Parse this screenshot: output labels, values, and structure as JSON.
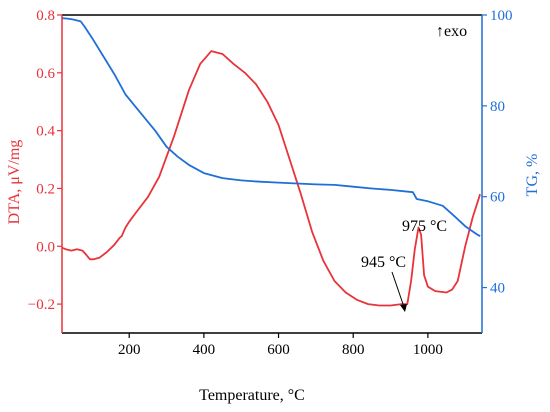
{
  "chart_data": {
    "type": "line",
    "xlabel": "Temperature, °C",
    "ylabel_left": "DTA, μV/mg",
    "ylabel_right": "TG, %",
    "xlim": [
      20,
      1145
    ],
    "ylim_left": [
      -0.3,
      0.8
    ],
    "ylim_right": [
      30,
      100
    ],
    "x_ticks": [
      200,
      400,
      600,
      800,
      1000
    ],
    "x_tick_labels": [
      "200",
      "400",
      "600",
      "800",
      "1000"
    ],
    "y_left_ticks": [
      -0.2,
      0.0,
      0.2,
      0.4,
      0.6,
      0.8
    ],
    "y_left_tick_labels": [
      "−0.2",
      "0.0",
      "0.2",
      "0.4",
      "0.6",
      "0.8"
    ],
    "y_right_ticks": [
      40,
      60,
      80,
      100
    ],
    "y_right_tick_labels": [
      "40",
      "60",
      "80",
      "100"
    ],
    "colors": {
      "dta": "#e8333a",
      "tg": "#1f6fd8",
      "axis": "#000000"
    },
    "series": [
      {
        "axis": "left",
        "x": [
          20,
          30,
          45,
          60,
          75,
          85,
          95,
          105,
          120,
          140,
          160,
          175,
          180,
          185,
          190,
          200,
          220,
          250,
          280,
          320,
          360,
          390,
          420,
          450,
          480,
          510,
          540,
          570,
          600,
          630,
          660,
          690,
          720,
          750,
          780,
          810,
          840,
          870,
          900,
          930,
          945,
          955,
          965,
          975,
          982,
          990,
          1000,
          1020,
          1050,
          1065,
          1080,
          1100,
          1120,
          1140
        ],
        "y": [
          -0.005,
          -0.01,
          -0.015,
          -0.01,
          -0.015,
          -0.03,
          -0.045,
          -0.045,
          -0.04,
          -0.02,
          0.005,
          0.03,
          0.035,
          0.05,
          0.065,
          0.085,
          0.12,
          0.17,
          0.24,
          0.38,
          0.54,
          0.63,
          0.675,
          0.665,
          0.63,
          0.6,
          0.56,
          0.5,
          0.42,
          0.3,
          0.18,
          0.05,
          -0.05,
          -0.12,
          -0.16,
          -0.185,
          -0.2,
          -0.205,
          -0.205,
          -0.2,
          -0.2,
          -0.12,
          -0.01,
          0.065,
          0.04,
          -0.1,
          -0.14,
          -0.155,
          -0.16,
          -0.15,
          -0.12,
          0.0,
          0.1,
          0.18
        ]
      },
      {
        "axis": "right",
        "x": [
          20,
          35,
          50,
          70,
          80,
          100,
          130,
          160,
          190,
          210,
          240,
          270,
          300,
          330,
          360,
          400,
          450,
          500,
          550,
          600,
          650,
          700,
          750,
          800,
          850,
          900,
          960,
          970,
          1000,
          1040,
          1070,
          1100,
          1130,
          1140
        ],
        "y": [
          99.3,
          99.2,
          99,
          98.6,
          97.5,
          95,
          91,
          87,
          82.5,
          80.5,
          77.5,
          74.5,
          71,
          68.8,
          67,
          65.2,
          64.1,
          63.6,
          63.3,
          63.1,
          62.9,
          62.7,
          62.6,
          62.2,
          61.8,
          61.5,
          61,
          59.5,
          59,
          58,
          55.8,
          53.5,
          51.8,
          51.3
        ]
      }
    ],
    "annotations": [
      {
        "text": "↑exo"
      },
      {
        "text": "975 °C",
        "x": 975
      },
      {
        "text": "945 °C",
        "x": 945
      }
    ]
  }
}
